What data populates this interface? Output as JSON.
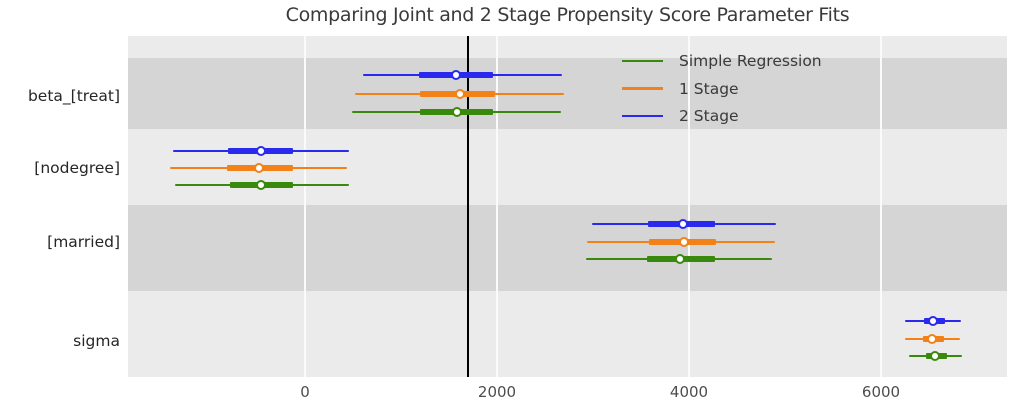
{
  "title": "Comparing Joint and 2 Stage Propensity Score Parameter Fits",
  "colors": {
    "simple_regression": "#398a0c",
    "one_stage": "#f28118",
    "two_stage": "#2a2aee",
    "plot_background": "#ebebeb",
    "band": "#d5d5d5",
    "gridline": "#fafafa",
    "reference_line": "#000000",
    "title_text": "#3a3a3a",
    "tick_text": "#4d4d4d"
  },
  "chart_data": {
    "type": "forest",
    "title": "Comparing Joint and 2 Stage Propensity Score Parameter Fits",
    "xlabel": "",
    "ylabel": "",
    "x_ticks": [
      0,
      2000,
      4000,
      6000
    ],
    "x_tick_labels": [
      "0",
      "2000",
      "4000",
      "6000"
    ],
    "xlim": [
      -1840,
      7320
    ],
    "reference_x": 1700,
    "grid": true,
    "legend_position": "upper right",
    "legend": [
      {
        "label": "Simple Regression",
        "color": "#398a0c"
      },
      {
        "label": "1 Stage",
        "color": "#f28118"
      },
      {
        "label": "2 Stage",
        "color": "#2a2aee"
      }
    ],
    "parameters": [
      {
        "label": "beta_[treat]",
        "shaded_band": true,
        "points": [
          {
            "model": "2 Stage",
            "color": "#2a2aee",
            "ci95": [
              600,
              2680
            ],
            "ci50": [
              1190,
              1955
            ],
            "median": 1580
          },
          {
            "model": "1 Stage",
            "color": "#f28118",
            "ci95": [
              520,
              2700
            ],
            "ci50": [
              1200,
              1980
            ],
            "median": 1615
          },
          {
            "model": "Simple Regression",
            "color": "#398a0c",
            "ci95": [
              490,
              2670
            ],
            "ci50": [
              1200,
              1960
            ],
            "median": 1585
          }
        ]
      },
      {
        "label": "[nodegree]",
        "shaded_band": false,
        "points": [
          {
            "model": "2 Stage",
            "color": "#2a2aee",
            "ci95": [
              -1380,
              460
            ],
            "ci50": [
              -800,
              -120
            ],
            "median": -450
          },
          {
            "model": "1 Stage",
            "color": "#f28118",
            "ci95": [
              -1405,
              435
            ],
            "ci50": [
              -810,
              -130
            ],
            "median": -475
          },
          {
            "model": "Simple Regression",
            "color": "#398a0c",
            "ci95": [
              -1355,
              460
            ],
            "ci50": [
              -780,
              -130
            ],
            "median": -450
          }
        ]
      },
      {
        "label": "[married]",
        "shaded_band": true,
        "points": [
          {
            "model": "2 Stage",
            "color": "#2a2aee",
            "ci95": [
              2985,
              4905
            ],
            "ci50": [
              3575,
              4270
            ],
            "median": 3940
          },
          {
            "model": "1 Stage",
            "color": "#f28118",
            "ci95": [
              2935,
              4895
            ],
            "ci50": [
              3585,
              4280
            ],
            "median": 3950
          },
          {
            "model": "Simple Regression",
            "color": "#398a0c",
            "ci95": [
              2925,
              4860
            ],
            "ci50": [
              3565,
              4270
            ],
            "median": 3915
          }
        ]
      },
      {
        "label": "sigma",
        "shaded_band": false,
        "points": [
          {
            "model": "2 Stage",
            "color": "#2a2aee",
            "ci95": [
              6255,
              6835
            ],
            "ci50": [
              6450,
              6665
            ],
            "median": 6550
          },
          {
            "model": "1 Stage",
            "color": "#f28118",
            "ci95": [
              6255,
              6825
            ],
            "ci50": [
              6440,
              6655
            ],
            "median": 6540
          },
          {
            "model": "Simple Regression",
            "color": "#398a0c",
            "ci95": [
              6295,
              6845
            ],
            "ci50": [
              6470,
              6690
            ],
            "median": 6565
          }
        ]
      }
    ]
  }
}
